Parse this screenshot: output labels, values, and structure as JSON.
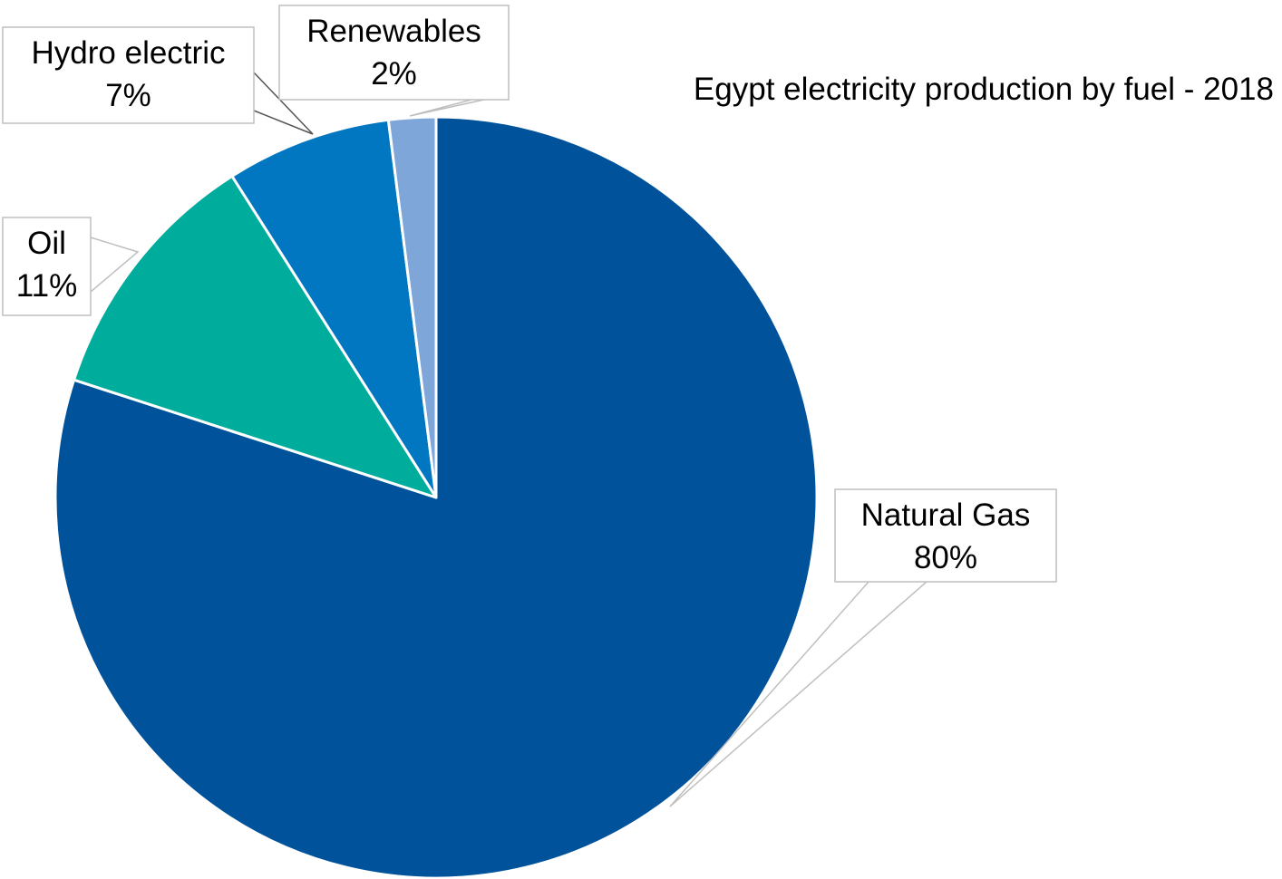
{
  "chart_data": {
    "type": "pie",
    "title": "Egypt electricity production by fuel - 2018",
    "categories": [
      "Natural Gas",
      "Oil",
      "Hydro electric",
      "Renewables"
    ],
    "values": [
      80,
      11,
      7,
      2
    ],
    "labels": [
      "80%",
      "11%",
      "7%",
      "2%"
    ],
    "colors": [
      "#00529b",
      "#00ac9c",
      "#0077c0",
      "#7ea6d9"
    ],
    "legend": "none",
    "data_labels": "callouts with category name and percentage",
    "start": "12 o'clock",
    "direction": "clockwise"
  }
}
